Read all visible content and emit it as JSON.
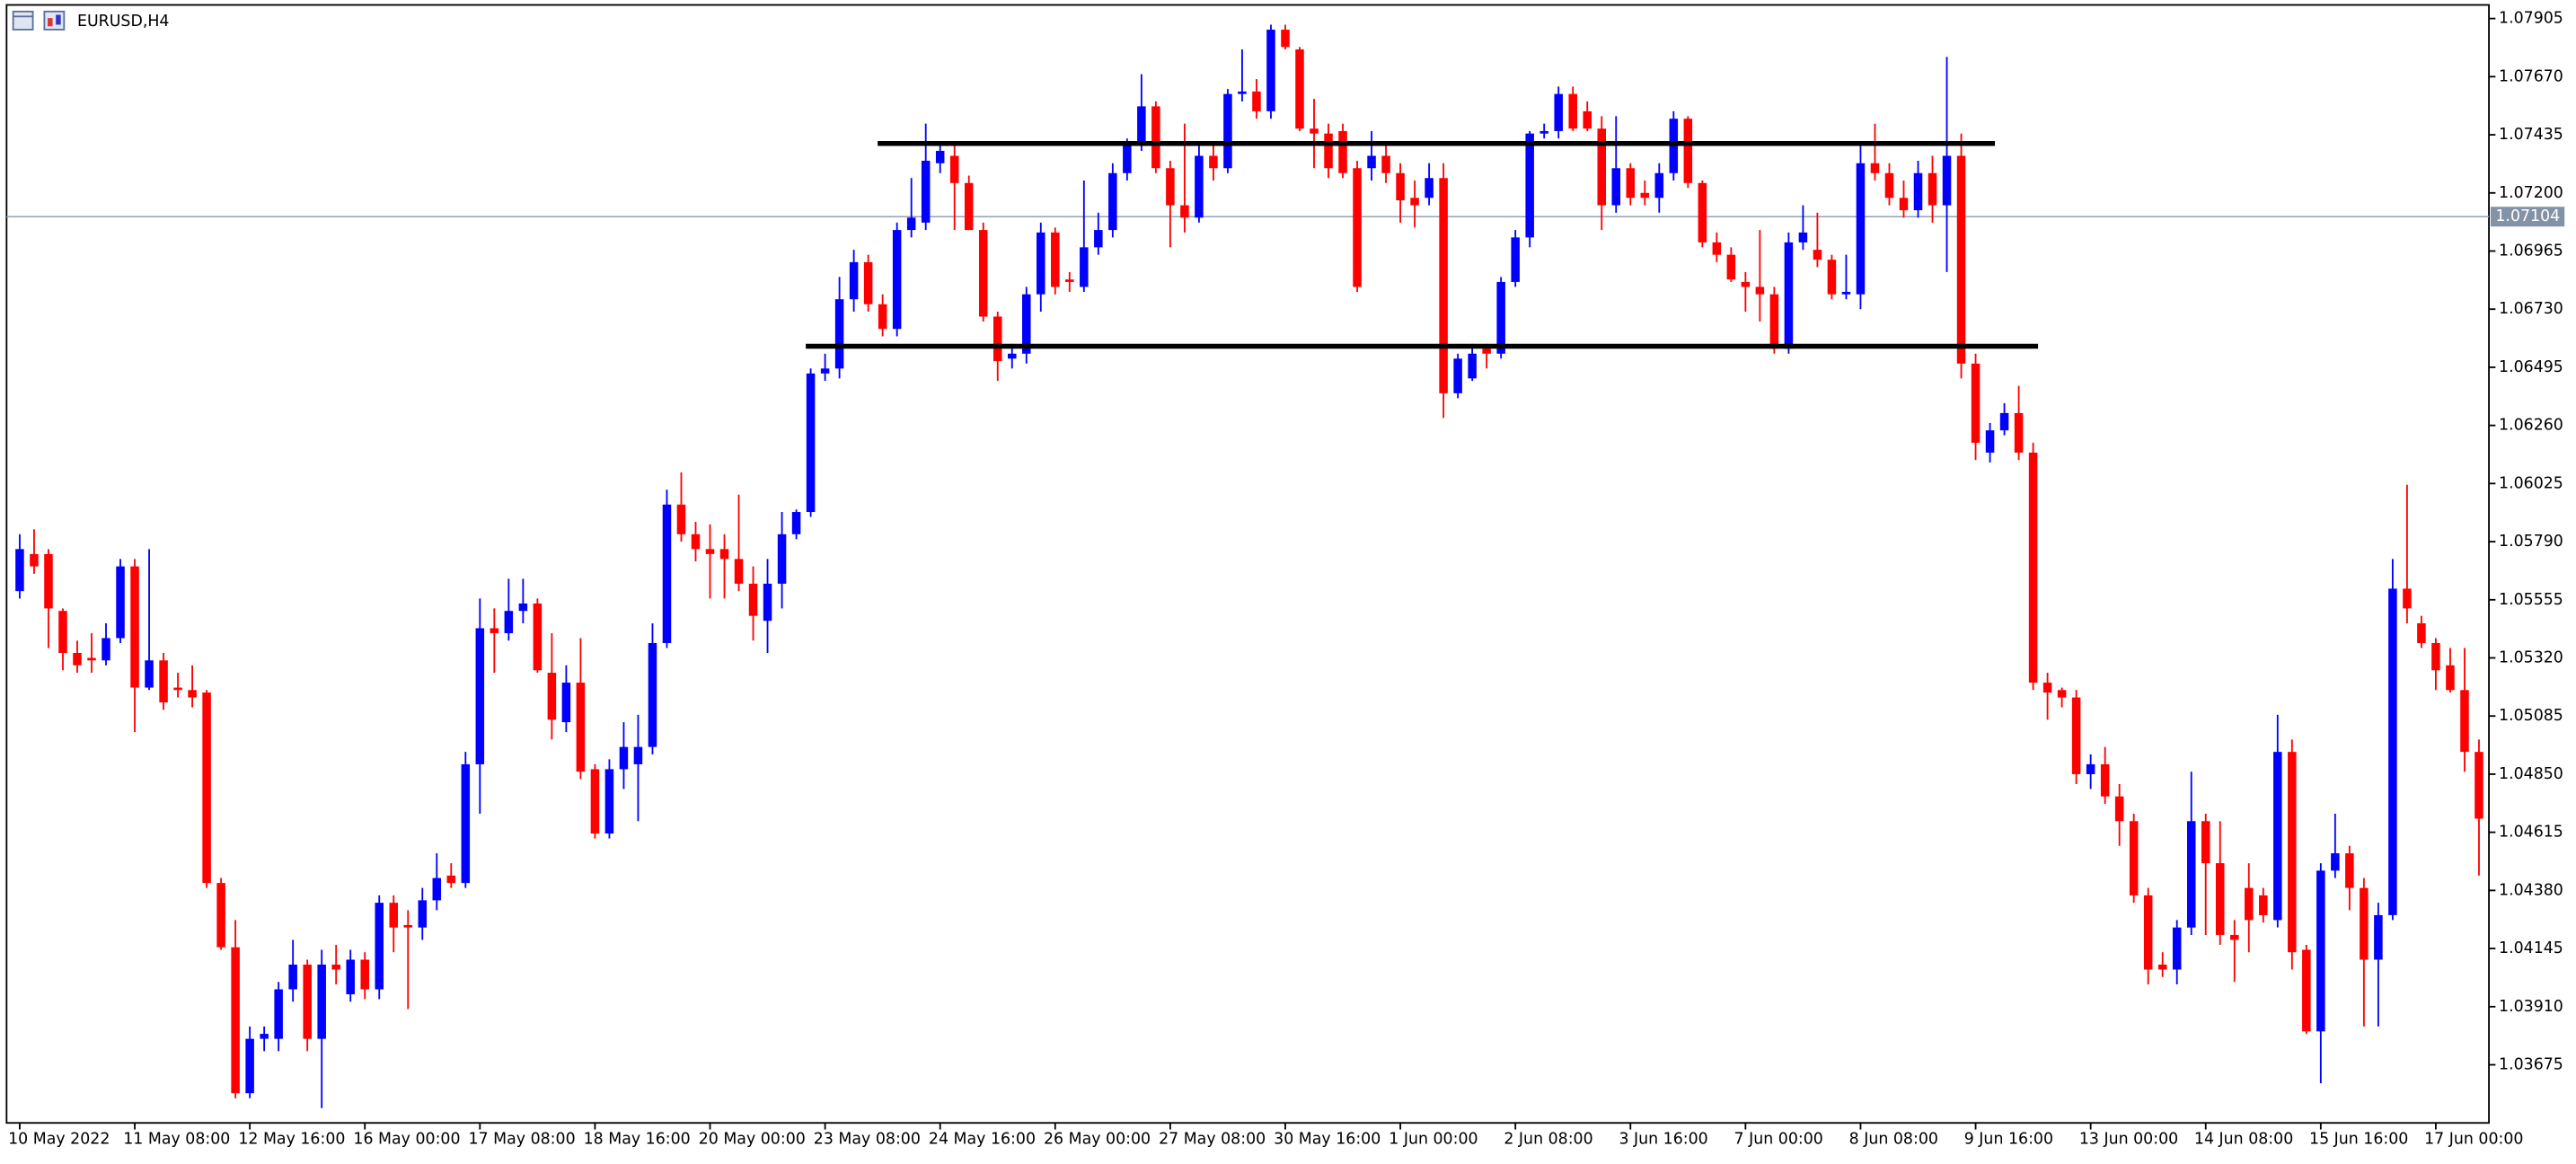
{
  "chart_data": {
    "type": "candlestick",
    "title": "EURUSD,H4",
    "up_color": "#0000ff",
    "down_color": "#ff0000",
    "ylim": [
      1.0344,
      1.0796
    ],
    "yticks": [
      1.07905,
      {
        "value": 1.0767,
        "label": "1.07670"
      },
      1.07435,
      {
        "value": 1.072,
        "label": "1.07200"
      },
      1.06965,
      {
        "value": 1.0673,
        "label": "1.06730"
      },
      1.06495,
      {
        "value": 1.0626,
        "label": "1.06260"
      },
      1.06025,
      {
        "value": 1.0579,
        "label": "1.05790"
      },
      1.05555,
      {
        "value": 1.0532,
        "label": "1.05320"
      },
      1.05085,
      {
        "value": 1.0485,
        "label": "1.04850"
      },
      1.04615,
      {
        "value": 1.0438,
        "label": "1.04380"
      },
      1.04145,
      {
        "value": 1.0391,
        "label": "1.03910"
      },
      1.03675
    ],
    "bid": 1.07104,
    "hlines": [
      {
        "value": 1.074,
        "from": 60,
        "to": 137
      },
      {
        "value": 1.0658,
        "from": 55,
        "to": 140
      }
    ],
    "categories": [
      "10 May 2022",
      null,
      null,
      null,
      null,
      null,
      null,
      null,
      "11 May 08:00",
      null,
      null,
      null,
      null,
      null,
      null,
      null,
      "12 May 16:00",
      null,
      null,
      null,
      null,
      null,
      null,
      null,
      "16 May 00:00",
      null,
      null,
      null,
      null,
      null,
      null,
      null,
      "17 May 08:00",
      null,
      null,
      null,
      null,
      null,
      null,
      null,
      "18 May 16:00",
      null,
      null,
      null,
      null,
      null,
      null,
      null,
      "20 May 00:00",
      null,
      null,
      null,
      null,
      null,
      null,
      null,
      "23 May 08:00",
      null,
      null,
      null,
      null,
      null,
      null,
      null,
      "24 May 16:00",
      null,
      null,
      null,
      null,
      null,
      null,
      null,
      "26 May 00:00",
      null,
      null,
      null,
      null,
      null,
      null,
      null,
      "27 May 08:00",
      null,
      null,
      null,
      null,
      null,
      null,
      null,
      "30 May 16:00",
      null,
      null,
      null,
      null,
      null,
      null,
      null,
      "1 Jun 00:00",
      null,
      null,
      null,
      null,
      null,
      null,
      null,
      "2 Jun 08:00",
      null,
      null,
      null,
      null,
      null,
      null,
      null,
      "3 Jun 16:00",
      null,
      null,
      null,
      null,
      null,
      null,
      null,
      "7 Jun 00:00",
      null,
      null,
      null,
      null,
      null,
      null,
      null,
      "8 Jun 08:00",
      null,
      null,
      null,
      null,
      null,
      null,
      null,
      "9 Jun 16:00",
      null,
      null,
      null,
      null,
      null,
      null,
      null,
      "13 Jun 00:00",
      null,
      null,
      null,
      null,
      null,
      null,
      null,
      "14 Jun 08:00",
      null,
      null,
      null,
      null,
      null,
      null,
      null,
      "15 Jun 16:00",
      null,
      null,
      null,
      null,
      null,
      null,
      null,
      "17 Jun 00:00",
      null,
      null,
      null
    ],
    "ohlc": [
      [
        1.0559,
        1.0582,
        1.0556,
        1.0576
      ],
      [
        1.0574,
        1.0584,
        1.0566,
        1.0569
      ],
      [
        1.0574,
        1.0576,
        1.0536,
        1.0552
      ],
      [
        1.0551,
        1.0552,
        1.0527,
        1.0534
      ],
      [
        1.0534,
        1.0539,
        1.0526,
        1.0529
      ],
      [
        1.0532,
        1.0542,
        1.0526,
        1.0531
      ],
      [
        1.0531,
        1.0546,
        1.0529,
        1.054
      ],
      [
        1.054,
        1.0572,
        1.0538,
        1.0569
      ],
      [
        1.0569,
        1.0572,
        1.0502,
        1.052
      ],
      [
        1.052,
        1.0576,
        1.0519,
        1.0531
      ],
      [
        1.0531,
        1.0534,
        1.0511,
        1.0514
      ],
      [
        1.052,
        1.0526,
        1.0516,
        1.0519
      ],
      [
        1.0519,
        1.0529,
        1.0512,
        1.0516
      ],
      [
        1.0518,
        1.0519,
        1.0439,
        1.0441
      ],
      [
        1.0441,
        1.0443,
        1.0414,
        1.0415
      ],
      [
        1.0415,
        1.0426,
        1.0354,
        1.0356
      ],
      [
        1.0356,
        1.0383,
        1.0354,
        1.0378
      ],
      [
        1.0378,
        1.0383,
        1.0373,
        1.038
      ],
      [
        1.0378,
        1.0401,
        1.0373,
        1.0398
      ],
      [
        1.0398,
        1.0418,
        1.0393,
        1.0408
      ],
      [
        1.0408,
        1.041,
        1.0373,
        1.0378
      ],
      [
        1.0378,
        1.0414,
        1.035,
        1.0408
      ],
      [
        1.0408,
        1.0416,
        1.04,
        1.0406
      ],
      [
        1.0396,
        1.0414,
        1.0393,
        1.041
      ],
      [
        1.041,
        1.0413,
        1.0394,
        1.0398
      ],
      [
        1.0398,
        1.0436,
        1.0394,
        1.0433
      ],
      [
        1.0433,
        1.0436,
        1.0413,
        1.0423
      ],
      [
        1.0424,
        1.043,
        1.039,
        1.0423
      ],
      [
        1.0423,
        1.0439,
        1.0418,
        1.0434
      ],
      [
        1.0434,
        1.0453,
        1.043,
        1.0443
      ],
      [
        1.0444,
        1.0449,
        1.0439,
        1.0441
      ],
      [
        1.0441,
        1.0494,
        1.0439,
        1.0489
      ],
      [
        1.0489,
        1.0556,
        1.0469,
        1.0544
      ],
      [
        1.0544,
        1.0552,
        1.0526,
        1.0542
      ],
      [
        1.0542,
        1.0564,
        1.0539,
        1.0551
      ],
      [
        1.0551,
        1.0564,
        1.0546,
        1.0554
      ],
      [
        1.0554,
        1.0556,
        1.0526,
        1.0527
      ],
      [
        1.0526,
        1.0542,
        1.0499,
        1.0507
      ],
      [
        1.0506,
        1.0529,
        1.0502,
        1.0522
      ],
      [
        1.0522,
        1.054,
        1.0483,
        1.0486
      ],
      [
        1.0487,
        1.0489,
        1.0459,
        1.0461
      ],
      [
        1.0461,
        1.0491,
        1.0459,
        1.0487
      ],
      [
        1.0487,
        1.0506,
        1.0479,
        1.0496
      ],
      [
        1.0489,
        1.0509,
        1.0466,
        1.0496
      ],
      [
        1.0496,
        1.0546,
        1.0493,
        1.0538
      ],
      [
        1.0538,
        1.06,
        1.0536,
        1.0594
      ],
      [
        1.0594,
        1.0607,
        1.0579,
        1.0582
      ],
      [
        1.0582,
        1.0587,
        1.0571,
        1.0576
      ],
      [
        1.0576,
        1.0586,
        1.0556,
        1.0574
      ],
      [
        1.0576,
        1.0582,
        1.0556,
        1.0572
      ],
      [
        1.0572,
        1.0598,
        1.0559,
        1.0562
      ],
      [
        1.0562,
        1.0569,
        1.0539,
        1.0549
      ],
      [
        1.0547,
        1.0572,
        1.0534,
        1.0562
      ],
      [
        1.0562,
        1.0591,
        1.0552,
        1.0582
      ],
      [
        1.0582,
        1.0592,
        1.058,
        1.0591
      ],
      [
        1.0591,
        1.0649,
        1.0589,
        1.0647
      ],
      [
        1.0647,
        1.0655,
        1.0644,
        1.0649
      ],
      [
        1.0649,
        1.0686,
        1.0645,
        1.0677
      ],
      [
        1.0677,
        1.0697,
        1.0672,
        1.0692
      ],
      [
        1.0692,
        1.0695,
        1.0672,
        1.0675
      ],
      [
        1.0675,
        1.0679,
        1.0662,
        1.0665
      ],
      [
        1.0665,
        1.0708,
        1.0662,
        1.0705
      ],
      [
        1.0705,
        1.0726,
        1.0702,
        1.071
      ],
      [
        1.0708,
        1.0748,
        1.0705,
        1.0733
      ],
      [
        1.0732,
        1.074,
        1.0728,
        1.0737
      ],
      [
        1.0735,
        1.074,
        1.0705,
        1.0724
      ],
      [
        1.0724,
        1.0727,
        1.0705,
        1.0705
      ],
      [
        1.0705,
        1.0708,
        1.0668,
        1.067
      ],
      [
        1.067,
        1.0672,
        1.0644,
        1.0652
      ],
      [
        1.0653,
        1.0659,
        1.0649,
        1.0655
      ],
      [
        1.0655,
        1.0682,
        1.0651,
        1.0679
      ],
      [
        1.0679,
        1.0708,
        1.0672,
        1.0704
      ],
      [
        1.0704,
        1.0706,
        1.0679,
        1.0682
      ],
      [
        1.0685,
        1.0688,
        1.068,
        1.0684
      ],
      [
        1.0682,
        1.0725,
        1.068,
        1.0698
      ],
      [
        1.0698,
        1.0712,
        1.0695,
        1.0705
      ],
      [
        1.0705,
        1.0732,
        1.0702,
        1.0728
      ],
      [
        1.0728,
        1.0742,
        1.0725,
        1.074
      ],
      [
        1.074,
        1.0768,
        1.0737,
        1.0755
      ],
      [
        1.0755,
        1.0757,
        1.0728,
        1.073
      ],
      [
        1.073,
        1.0733,
        1.0698,
        1.0715
      ],
      [
        1.0715,
        1.0748,
        1.0704,
        1.071
      ],
      [
        1.071,
        1.074,
        1.0708,
        1.0735
      ],
      [
        1.0735,
        1.074,
        1.0725,
        1.073
      ],
      [
        1.073,
        1.0762,
        1.0728,
        1.076
      ],
      [
        1.076,
        1.0778,
        1.0757,
        1.0761
      ],
      [
        1.0761,
        1.0766,
        1.075,
        1.0753
      ],
      [
        1.0753,
        1.0788,
        1.075,
        1.0786
      ],
      [
        1.0786,
        1.0788,
        1.0778,
        1.0779
      ],
      [
        1.0778,
        1.0779,
        1.0745,
        1.0746
      ],
      [
        1.0746,
        1.0758,
        1.073,
        1.0744
      ],
      [
        1.0744,
        1.0748,
        1.0726,
        1.073
      ],
      [
        1.0745,
        1.0748,
        1.0726,
        1.0728
      ],
      [
        1.073,
        1.0733,
        1.068,
        1.0682
      ],
      [
        1.073,
        1.0745,
        1.0725,
        1.0735
      ],
      [
        1.0735,
        1.074,
        1.0724,
        1.0728
      ],
      [
        1.0728,
        1.0732,
        1.0708,
        1.0717
      ],
      [
        1.0718,
        1.0725,
        1.0706,
        1.0715
      ],
      [
        1.0718,
        1.0732,
        1.0715,
        1.0726
      ],
      [
        1.0726,
        1.0732,
        1.0629,
        1.0639
      ],
      [
        1.0639,
        1.0655,
        1.0637,
        1.0653
      ],
      [
        1.0645,
        1.0659,
        1.0644,
        1.0655
      ],
      [
        1.0657,
        1.0659,
        1.0649,
        1.0655
      ],
      [
        1.0655,
        1.0686,
        1.0653,
        1.0684
      ],
      [
        1.0684,
        1.0705,
        1.0682,
        1.0702
      ],
      [
        1.0702,
        1.0745,
        1.0698,
        1.0744
      ],
      [
        1.0744,
        1.0748,
        1.0742,
        1.0745
      ],
      [
        1.0745,
        1.0763,
        1.0742,
        1.076
      ],
      [
        1.076,
        1.0763,
        1.0745,
        1.0746
      ],
      [
        1.0753,
        1.0757,
        1.0745,
        1.0746
      ],
      [
        1.0746,
        1.0751,
        1.0705,
        1.0715
      ],
      [
        1.0715,
        1.0751,
        1.0712,
        1.073
      ],
      [
        1.073,
        1.0732,
        1.0715,
        1.0718
      ],
      [
        1.072,
        1.0725,
        1.0715,
        1.0718
      ],
      [
        1.0718,
        1.0732,
        1.0712,
        1.0728
      ],
      [
        1.0728,
        1.0753,
        1.0725,
        1.075
      ],
      [
        1.075,
        1.0751,
        1.0722,
        1.0724
      ],
      [
        1.0724,
        1.0725,
        1.0698,
        1.07
      ],
      [
        1.07,
        1.0704,
        1.0692,
        1.0695
      ],
      [
        1.0695,
        1.0698,
        1.0684,
        1.0685
      ],
      [
        1.0684,
        1.0688,
        1.0672,
        1.0682
      ],
      [
        1.0682,
        1.0705,
        1.0668,
        1.0679
      ],
      [
        1.0679,
        1.0682,
        1.0655,
        1.0657
      ],
      [
        1.0657,
        1.0704,
        1.0655,
        1.07
      ],
      [
        1.07,
        1.0715,
        1.0697,
        1.0704
      ],
      [
        1.0697,
        1.0712,
        1.069,
        1.0693
      ],
      [
        1.0693,
        1.0695,
        1.0677,
        1.0679
      ],
      [
        1.0679,
        1.0695,
        1.0677,
        1.068
      ],
      [
        1.0679,
        1.074,
        1.0673,
        1.0732
      ],
      [
        1.0732,
        1.0748,
        1.0725,
        1.0728
      ],
      [
        1.0728,
        1.0732,
        1.0715,
        1.0718
      ],
      [
        1.0718,
        1.0725,
        1.071,
        1.0713
      ],
      [
        1.0713,
        1.0733,
        1.071,
        1.0728
      ],
      [
        1.0728,
        1.0735,
        1.0708,
        1.0715
      ],
      [
        1.0715,
        1.0775,
        1.0688,
        1.0735
      ],
      [
        1.0735,
        1.0744,
        1.0645,
        1.0651
      ],
      [
        1.0651,
        1.0655,
        1.0612,
        1.0619
      ],
      [
        1.0615,
        1.0627,
        1.0611,
        1.0624
      ],
      [
        1.0624,
        1.0635,
        1.0622,
        1.0631
      ],
      [
        1.0631,
        1.0642,
        1.0612,
        1.0615
      ],
      [
        1.0615,
        1.0619,
        1.0519,
        1.0522
      ],
      [
        1.0522,
        1.0526,
        1.0507,
        1.0518
      ],
      [
        1.0519,
        1.052,
        1.0512,
        1.0516
      ],
      [
        1.0516,
        1.0519,
        1.0481,
        1.0485
      ],
      [
        1.0485,
        1.0493,
        1.0479,
        1.0489
      ],
      [
        1.0489,
        1.0496,
        1.0473,
        1.0476
      ],
      [
        1.0476,
        1.0481,
        1.0456,
        1.0466
      ],
      [
        1.0466,
        1.0469,
        1.0433,
        1.0436
      ],
      [
        1.0436,
        1.0439,
        1.04,
        1.0406
      ],
      [
        1.0408,
        1.0413,
        1.0403,
        1.0406
      ],
      [
        1.0406,
        1.0426,
        1.04,
        1.0423
      ],
      [
        1.0423,
        1.0486,
        1.042,
        1.0466
      ],
      [
        1.0466,
        1.0469,
        1.042,
        1.0449
      ],
      [
        1.0449,
        1.0466,
        1.0416,
        1.042
      ],
      [
        1.042,
        1.0426,
        1.0401,
        1.0418
      ],
      [
        1.0439,
        1.0449,
        1.0413,
        1.0426
      ],
      [
        1.0436,
        1.0439,
        1.0425,
        1.0428
      ],
      [
        1.0426,
        1.0509,
        1.0423,
        1.0494
      ],
      [
        1.0494,
        1.0499,
        1.0406,
        1.0413
      ],
      [
        1.0414,
        1.0416,
        1.038,
        1.0381
      ],
      [
        1.0381,
        1.0449,
        1.036,
        1.0446
      ],
      [
        1.0446,
        1.0469,
        1.0443,
        1.0453
      ],
      [
        1.0453,
        1.0456,
        1.043,
        1.0439
      ],
      [
        1.0439,
        1.0443,
        1.0383,
        1.041
      ],
      [
        1.041,
        1.0433,
        1.0383,
        1.0428
      ],
      [
        1.0428,
        1.0572,
        1.0426,
        1.056
      ],
      [
        1.056,
        1.0602,
        1.0546,
        1.0552
      ],
      [
        1.0546,
        1.0549,
        1.0536,
        1.0538
      ],
      [
        1.0538,
        1.054,
        1.0519,
        1.0527
      ],
      [
        1.0529,
        1.0536,
        1.0518,
        1.0519
      ],
      [
        1.0519,
        1.0536,
        1.0486,
        1.0494
      ],
      [
        1.0494,
        1.0499,
        1.0444,
        1.0467
      ]
    ]
  }
}
